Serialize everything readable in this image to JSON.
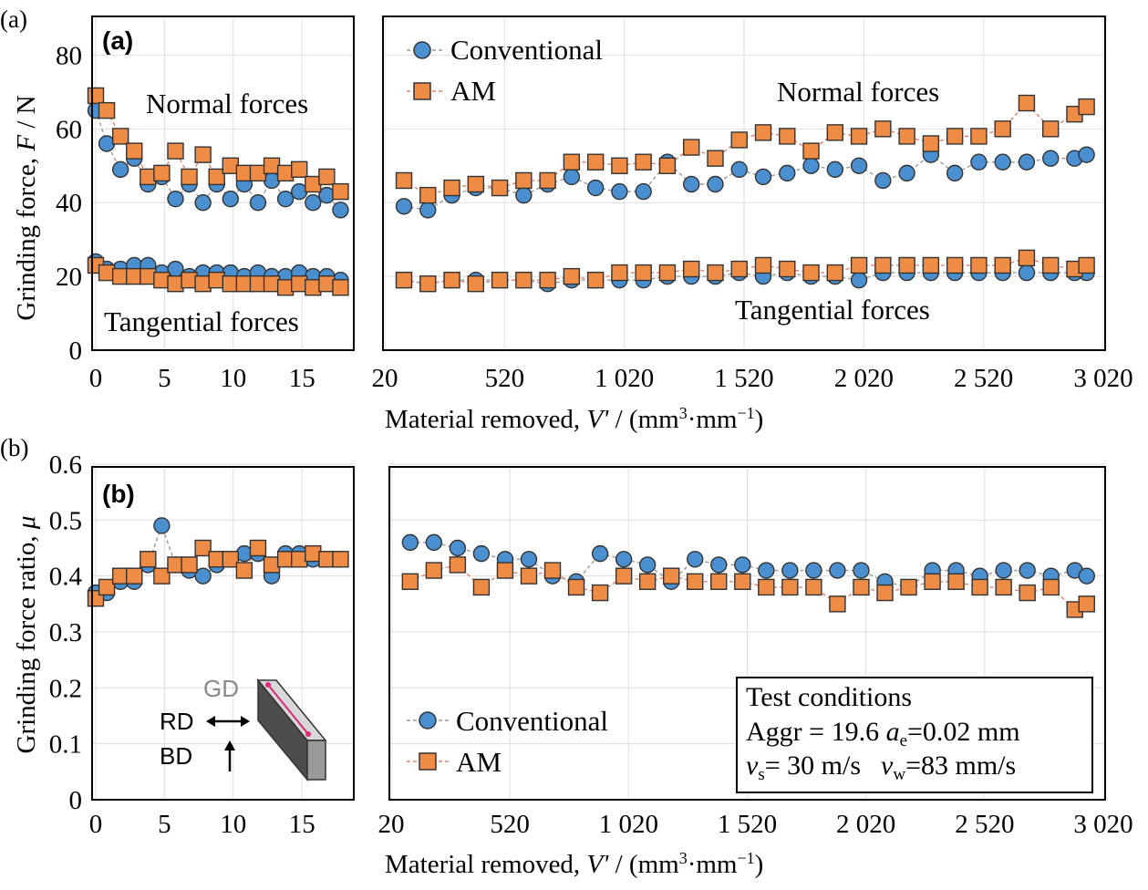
{
  "figure": {
    "panel_a_outer_label": "(a)",
    "panel_b_outer_label": "(b)"
  },
  "colors": {
    "conventional_fill": "#4a8fd0",
    "am_fill": "#ee8b45",
    "conventional_line": "#9a9a9a",
    "am_line": "#e2806a",
    "grid": "#dedede",
    "frame": "#000000"
  },
  "chart_data": [
    {
      "type": "scatter",
      "panel_label": "(a)",
      "ylabel": "Grinding force, F / N",
      "xlabel": "Material removed, V' / (mm³·mm⁻¹)",
      "ylim": [
        0,
        90
      ],
      "yticks": [
        0,
        20,
        40,
        60,
        80
      ],
      "legend": {
        "entries": [
          "Conventional",
          "AM"
        ],
        "placement": "top-left of right sub-panel"
      },
      "annotations": [
        "Normal forces",
        "Tangential forces",
        "Normal forces",
        "Tangential forces"
      ],
      "left": {
        "xlim": [
          0,
          18.5
        ],
        "xticks": [
          0,
          5,
          10,
          15
        ],
        "series": [
          {
            "name": "Conventional",
            "group": "normal",
            "x": [
              0,
              0.8,
              1.8,
              2.8,
              3.8,
              4.8,
              5.8,
              6.8,
              7.8,
              8.8,
              9.8,
              10.8,
              11.8,
              12.8,
              13.8,
              14.8,
              15.8,
              16.8,
              17.8
            ],
            "y": [
              65,
              56,
              49,
              52,
              45,
              47,
              41,
              45,
              40,
              45,
              41,
              45,
              40,
              46,
              41,
              43,
              40,
              42,
              38
            ]
          },
          {
            "name": "Conventional",
            "group": "tangential",
            "x": [
              0,
              0.8,
              1.8,
              2.8,
              3.8,
              4.8,
              5.8,
              6.8,
              7.8,
              8.8,
              9.8,
              10.8,
              11.8,
              12.8,
              13.8,
              14.8,
              15.8,
              16.8,
              17.8
            ],
            "y": [
              24,
              22,
              22,
              23,
              23,
              21,
              22,
              20,
              21,
              21,
              21,
              20,
              21,
              20,
              20,
              21,
              20,
              20,
              19
            ]
          },
          {
            "name": "AM",
            "group": "normal",
            "x": [
              0,
              0.8,
              1.8,
              2.8,
              3.8,
              4.8,
              5.8,
              6.8,
              7.8,
              8.8,
              9.8,
              10.8,
              11.8,
              12.8,
              13.8,
              14.8,
              15.8,
              16.8,
              17.8
            ],
            "y": [
              69,
              65,
              58,
              54,
              47,
              48,
              54,
              47,
              53,
              47,
              50,
              48,
              48,
              50,
              48,
              49,
              45,
              47,
              43
            ]
          },
          {
            "name": "AM",
            "group": "tangential",
            "x": [
              0,
              0.8,
              1.8,
              2.8,
              3.8,
              4.8,
              5.8,
              6.8,
              7.8,
              8.8,
              9.8,
              10.8,
              11.8,
              12.8,
              13.8,
              14.8,
              15.8,
              16.8,
              17.8
            ],
            "y": [
              23,
              21,
              20,
              20,
              20,
              19,
              18,
              19,
              18,
              19,
              18,
              18,
              18,
              18,
              17,
              18,
              17,
              18,
              17
            ]
          }
        ]
      },
      "right": {
        "xlim": [
          20,
          3020
        ],
        "xticks": [
          20,
          520,
          1020,
          1520,
          2020,
          2520,
          3020
        ],
        "xticklabels": [
          "20",
          "520",
          "1 020",
          "1 520",
          "2 020",
          "2 520",
          "3 020"
        ],
        "series": [
          {
            "name": "Conventional",
            "group": "normal",
            "x": [
              100,
              200,
              300,
              400,
              500,
              600,
              700,
              800,
              900,
              1000,
              1100,
              1200,
              1300,
              1400,
              1500,
              1600,
              1700,
              1800,
              1900,
              2000,
              2100,
              2200,
              2300,
              2400,
              2500,
              2600,
              2700,
              2800,
              2900,
              2950
            ],
            "y": [
              39,
              38,
              42,
              44,
              44,
              42,
              45,
              47,
              44,
              43,
              43,
              51,
              45,
              45,
              49,
              47,
              48,
              50,
              49,
              50,
              46,
              48,
              53,
              48,
              51,
              51,
              51,
              52,
              52,
              53
            ]
          },
          {
            "name": "Conventional",
            "group": "tangential",
            "x": [
              100,
              200,
              300,
              400,
              500,
              600,
              700,
              800,
              900,
              1000,
              1100,
              1200,
              1300,
              1400,
              1500,
              1600,
              1700,
              1800,
              1900,
              2000,
              2100,
              2200,
              2300,
              2400,
              2500,
              2600,
              2700,
              2800,
              2900,
              2950
            ],
            "y": [
              19,
              18,
              19,
              19,
              19,
              19,
              18,
              19,
              19,
              19,
              19,
              20,
              20,
              20,
              21,
              20,
              21,
              20,
              20,
              19,
              21,
              21,
              21,
              21,
              21,
              21,
              21,
              21,
              21,
              21
            ]
          },
          {
            "name": "AM",
            "group": "normal",
            "x": [
              100,
              200,
              300,
              400,
              500,
              600,
              700,
              800,
              900,
              1000,
              1100,
              1200,
              1300,
              1400,
              1500,
              1600,
              1700,
              1800,
              1900,
              2000,
              2100,
              2200,
              2300,
              2400,
              2500,
              2600,
              2700,
              2800,
              2900,
              2950
            ],
            "y": [
              46,
              42,
              44,
              45,
              44,
              46,
              46,
              51,
              51,
              50,
              51,
              50,
              55,
              52,
              57,
              59,
              58,
              54,
              59,
              58,
              60,
              58,
              56,
              58,
              58,
              60,
              67,
              60,
              64,
              66
            ]
          },
          {
            "name": "AM",
            "group": "tangential",
            "x": [
              100,
              200,
              300,
              400,
              500,
              600,
              700,
              800,
              900,
              1000,
              1100,
              1200,
              1300,
              1400,
              1500,
              1600,
              1700,
              1800,
              1900,
              2000,
              2100,
              2200,
              2300,
              2400,
              2500,
              2600,
              2700,
              2800,
              2900,
              2950
            ],
            "y": [
              19,
              18,
              19,
              18,
              19,
              19,
              19,
              20,
              19,
              21,
              21,
              21,
              22,
              21,
              22,
              23,
              22,
              21,
              21,
              23,
              23,
              23,
              23,
              23,
              23,
              23,
              25,
              23,
              22,
              23
            ]
          }
        ]
      }
    },
    {
      "type": "scatter",
      "panel_label": "(b)",
      "ylabel": "Grinding force ratio, μ",
      "xlabel": "Material removed, V' / (mm³·mm⁻¹)",
      "ylim": [
        0,
        0.6
      ],
      "yticks": [
        0,
        0.1,
        0.2,
        0.3,
        0.4,
        0.5,
        0.6
      ],
      "legend": {
        "entries": [
          "Conventional",
          "AM"
        ],
        "placement": "bottom-left of right sub-panel"
      },
      "inset": {
        "GD": "GD",
        "RD": "RD",
        "BD": "BD"
      },
      "test_conditions": {
        "title": "Test conditions",
        "aggr": "Aggr = 19.6",
        "ae_sym": "a",
        "ae_sub": "e",
        "ae_val": "=0.02 mm",
        "vs_sym": "v",
        "vs_sub": "s",
        "vs_val": "= 30 m/s",
        "vw_sym": "v",
        "vw_sub": "w",
        "vw_val": "=83 mm/s"
      },
      "left": {
        "xlim": [
          0,
          18.5
        ],
        "xticks": [
          0,
          5,
          10,
          15
        ],
        "series": [
          {
            "name": "Conventional",
            "x": [
              0,
              0.8,
              1.8,
              2.8,
              3.8,
              4.8,
              5.8,
              6.8,
              7.8,
              8.8,
              9.8,
              10.8,
              11.8,
              12.8,
              13.8,
              14.8,
              15.8,
              16.8,
              17.8
            ],
            "y": [
              0.37,
              0.37,
              0.39,
              0.39,
              0.42,
              0.49,
              0.42,
              0.41,
              0.4,
              0.42,
              0.43,
              0.44,
              0.44,
              0.4,
              0.44,
              0.44,
              0.43,
              0.43,
              0.43
            ]
          },
          {
            "name": "AM",
            "x": [
              0,
              0.8,
              1.8,
              2.8,
              3.8,
              4.8,
              5.8,
              6.8,
              7.8,
              8.8,
              9.8,
              10.8,
              11.8,
              12.8,
              13.8,
              14.8,
              15.8,
              16.8,
              17.8
            ],
            "y": [
              0.36,
              0.38,
              0.4,
              0.4,
              0.43,
              0.4,
              0.42,
              0.42,
              0.45,
              0.43,
              0.43,
              0.41,
              0.45,
              0.42,
              0.43,
              0.43,
              0.44,
              0.43,
              0.43
            ]
          }
        ]
      },
      "right": {
        "xlim": [
          20,
          3020
        ],
        "xticks": [
          20,
          520,
          1020,
          1520,
          2020,
          2520,
          3020
        ],
        "xticklabels": [
          "20",
          "520",
          "1 020",
          "1 520",
          "2 020",
          "2 520",
          "3 020"
        ],
        "series": [
          {
            "name": "Conventional",
            "x": [
              100,
              200,
              300,
              400,
              500,
              600,
              700,
              800,
              900,
              1000,
              1100,
              1200,
              1300,
              1400,
              1500,
              1600,
              1700,
              1800,
              1900,
              2000,
              2100,
              2200,
              2300,
              2400,
              2500,
              2600,
              2700,
              2800,
              2900,
              2950
            ],
            "y": [
              0.46,
              0.46,
              0.45,
              0.44,
              0.43,
              0.43,
              0.4,
              0.39,
              0.44,
              0.43,
              0.42,
              0.39,
              0.43,
              0.42,
              0.42,
              0.41,
              0.41,
              0.41,
              0.41,
              0.41,
              0.39,
              0.38,
              0.41,
              0.41,
              0.4,
              0.41,
              0.41,
              0.4,
              0.41,
              0.4
            ]
          },
          {
            "name": "AM",
            "x": [
              100,
              200,
              300,
              400,
              500,
              600,
              700,
              800,
              900,
              1000,
              1100,
              1200,
              1300,
              1400,
              1500,
              1600,
              1700,
              1800,
              1900,
              2000,
              2100,
              2200,
              2300,
              2400,
              2500,
              2600,
              2700,
              2800,
              2900,
              2950
            ],
            "y": [
              0.39,
              0.41,
              0.42,
              0.38,
              0.41,
              0.4,
              0.41,
              0.38,
              0.37,
              0.4,
              0.39,
              0.4,
              0.39,
              0.39,
              0.39,
              0.38,
              0.38,
              0.38,
              0.35,
              0.38,
              0.37,
              0.38,
              0.39,
              0.39,
              0.38,
              0.38,
              0.37,
              0.38,
              0.34,
              0.35
            ]
          }
        ]
      }
    }
  ]
}
